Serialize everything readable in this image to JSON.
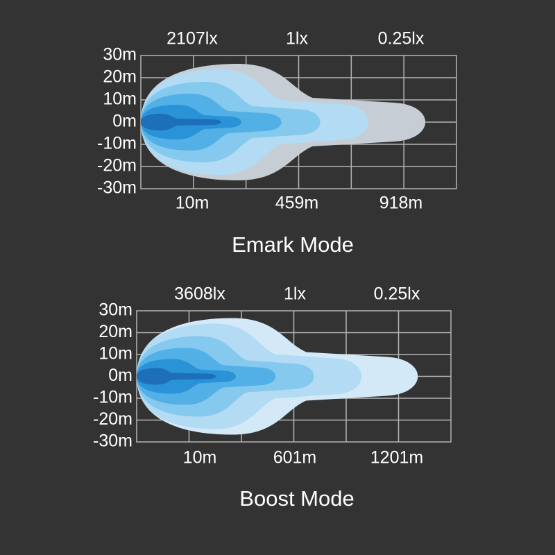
{
  "panels": [
    {
      "lux_labels": [
        "2107lx",
        "1lx",
        "0.25lx"
      ],
      "y_labels": [
        "30m",
        "20m",
        "10m",
        "0m",
        "-10m",
        "-20m",
        "-30m"
      ],
      "x_labels": [
        "10m",
        "459m",
        "918m"
      ],
      "title": "Emark Mode"
    },
    {
      "lux_labels": [
        "3608lx",
        "1lx",
        "0.25lx"
      ],
      "y_labels": [
        "30m",
        "20m",
        "10m",
        "0m",
        "-10m",
        "-20m",
        "-30m"
      ],
      "x_labels": [
        "10m",
        "601m",
        "1201m"
      ],
      "title": "Boost Mode"
    }
  ]
}
